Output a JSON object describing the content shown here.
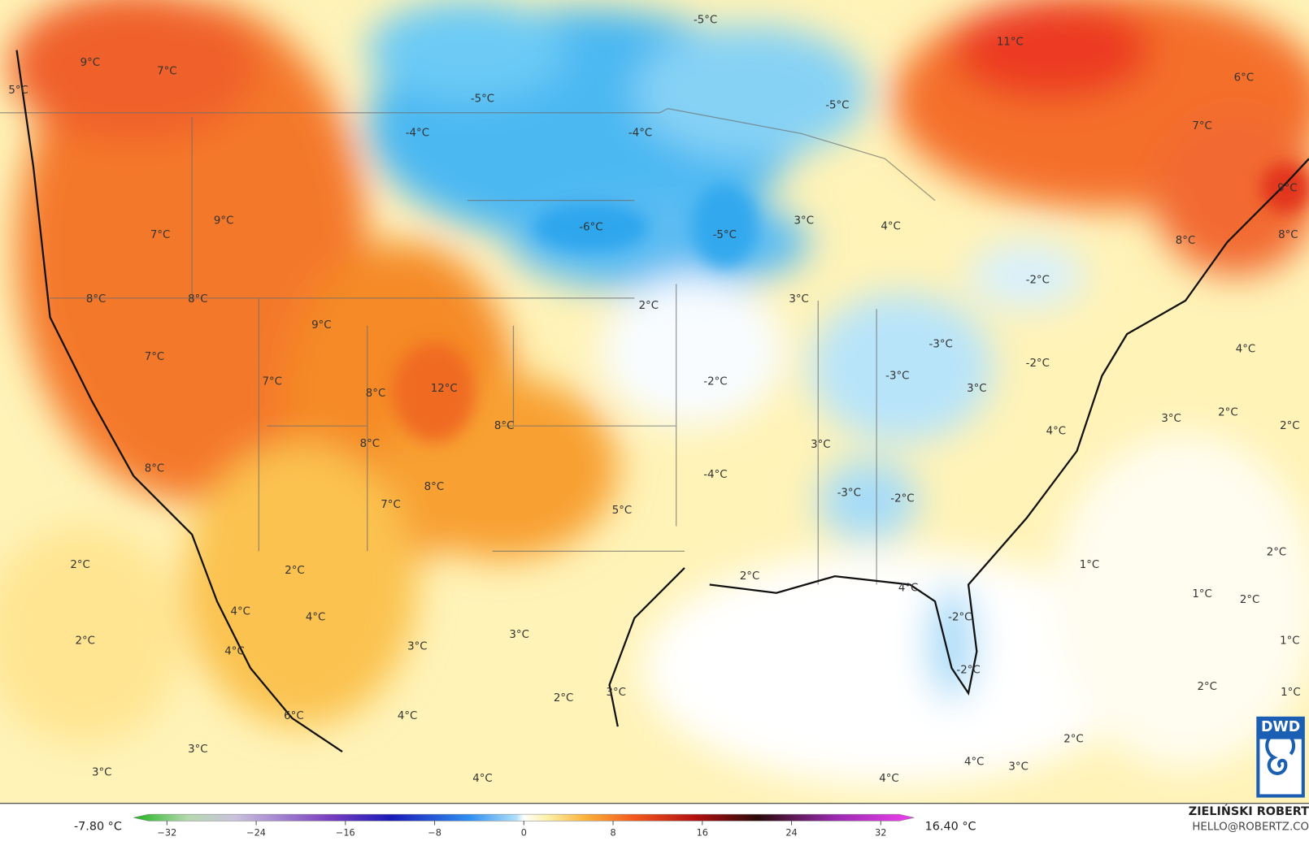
{
  "map": {
    "labels": [
      "9°C",
      "7°C",
      "5°C",
      "-5°C",
      "11°C",
      "6°C",
      "-5°C",
      "-5°C",
      "-4°C",
      "-4°C",
      "7°C",
      "9°C",
      "3°C",
      "4°C",
      "7°C",
      "9°C",
      "-6°C",
      "-5°C",
      "8°C",
      "8°C",
      "-2°C",
      "8°C",
      "8°C",
      "3°C",
      "2°C",
      "9°C",
      "-3°C",
      "4°C",
      "7°C",
      "-2°C",
      "-3°C",
      "-2°C",
      "7°C",
      "3°C",
      "12°C",
      "8°C",
      "3°C",
      "2°C",
      "2°C",
      "8°C",
      "4°C",
      "8°C",
      "3°C",
      "8°C",
      "-4°C",
      "8°C",
      "-3°C",
      "-2°C",
      "7°C",
      "5°C",
      "2°C",
      "1°C",
      "2°C",
      "2°C",
      "2°C",
      "1°C",
      "2°C",
      "4°C",
      "4°C",
      "4°C",
      "-2°C",
      "2°C",
      "3°C",
      "1°C",
      "3°C",
      "4°C",
      "-2°C",
      "3°C",
      "2°C",
      "2°C",
      "1°C",
      "4°C",
      "6°C",
      "2°C",
      "3°C",
      "3°C",
      "4°C",
      "3°C",
      "4°C",
      "4°C"
    ]
  },
  "legend": {
    "min_label": "-7.80 °C",
    "max_label": "16.40 °C",
    "ticks": [
      {
        "value": -32,
        "label": "−32"
      },
      {
        "value": -24,
        "label": "−24"
      },
      {
        "value": -16,
        "label": "−16"
      },
      {
        "value": -8,
        "label": "−8"
      },
      0,
      8,
      16,
      24,
      32
    ]
  },
  "credit": {
    "name": "ZIELIŃSKI ROBERT",
    "email": "HELLO@ROBERTZ.CO"
  },
  "logo": "DWD"
}
